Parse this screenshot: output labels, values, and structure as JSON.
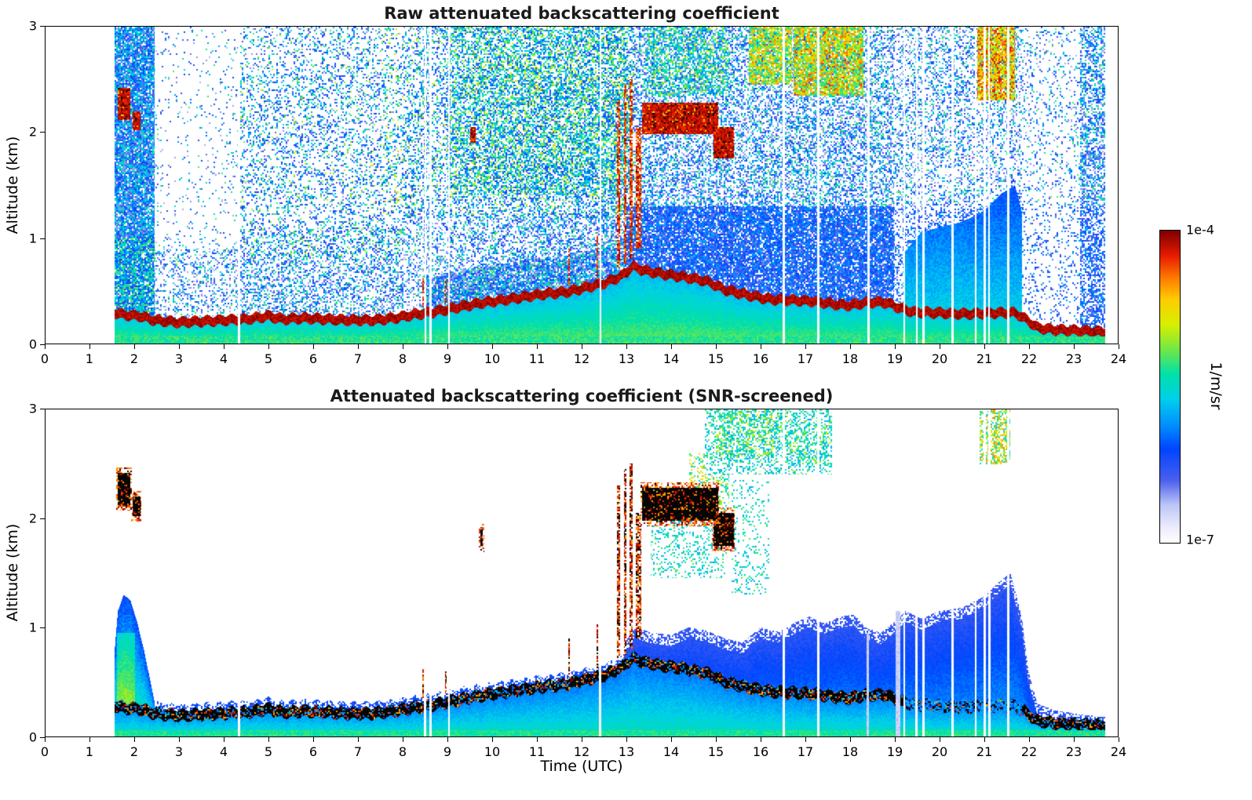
{
  "figure": {
    "xlabel": "Time (UTC)",
    "colorbar": {
      "max_label": "1e-4",
      "min_label": "1e-7",
      "unit_label": "1/m/sr",
      "scale": "log",
      "colormap": "white-blue-cyan-green-yellow-red-darkred"
    }
  },
  "chart_data": [
    {
      "type": "heatmap",
      "title": "Raw attenuated backscattering coefficient",
      "ylabel": "Altitude (km)",
      "xlim": [
        0,
        24
      ],
      "ylim": [
        0,
        3
      ],
      "xticks": [
        0,
        1,
        2,
        3,
        4,
        5,
        6,
        7,
        8,
        9,
        10,
        11,
        12,
        13,
        14,
        15,
        16,
        17,
        18,
        19,
        20,
        21,
        22,
        23,
        24
      ],
      "yticks": [
        0,
        1,
        2,
        3
      ],
      "value_range_1_per_m_sr": [
        1e-07,
        0.0001
      ],
      "data_start_utc": 1.55,
      "data_end_utc": 23.72,
      "aerosol_layer_top_km": [
        [
          1.55,
          0.33
        ],
        [
          1.8,
          0.31
        ],
        [
          2.1,
          0.3
        ],
        [
          2.45,
          0.26
        ],
        [
          3.0,
          0.24
        ],
        [
          3.5,
          0.25
        ],
        [
          4.0,
          0.26
        ],
        [
          4.5,
          0.27
        ],
        [
          5.0,
          0.3
        ],
        [
          5.3,
          0.27
        ],
        [
          5.8,
          0.28
        ],
        [
          6.3,
          0.27
        ],
        [
          6.8,
          0.26
        ],
        [
          7.3,
          0.26
        ],
        [
          7.8,
          0.28
        ],
        [
          8.2,
          0.31
        ],
        [
          8.7,
          0.34
        ],
        [
          9.2,
          0.38
        ],
        [
          9.7,
          0.42
        ],
        [
          10.2,
          0.45
        ],
        [
          10.7,
          0.48
        ],
        [
          11.2,
          0.51
        ],
        [
          11.7,
          0.53
        ],
        [
          12.1,
          0.57
        ],
        [
          12.5,
          0.61
        ],
        [
          12.9,
          0.68
        ],
        [
          13.15,
          0.77
        ],
        [
          13.4,
          0.73
        ],
        [
          13.8,
          0.7
        ],
        [
          14.3,
          0.67
        ],
        [
          14.8,
          0.63
        ],
        [
          15.2,
          0.55
        ],
        [
          15.7,
          0.5
        ],
        [
          16.2,
          0.46
        ],
        [
          16.7,
          0.45
        ],
        [
          17.2,
          0.44
        ],
        [
          17.7,
          0.41
        ],
        [
          18.0,
          0.4
        ],
        [
          18.4,
          0.43
        ],
        [
          18.8,
          0.43
        ],
        [
          19.1,
          0.38
        ],
        [
          19.4,
          0.34
        ],
        [
          20.0,
          0.33
        ],
        [
          20.6,
          0.32
        ],
        [
          21.2,
          0.33
        ],
        [
          21.7,
          0.33
        ],
        [
          21.95,
          0.27
        ],
        [
          22.2,
          0.19
        ],
        [
          22.6,
          0.17
        ],
        [
          23.2,
          0.16
        ],
        [
          23.7,
          0.15
        ]
      ],
      "cloud_layers": [
        {
          "t0": 1.62,
          "t1": 1.9,
          "z0": 2.12,
          "z1": 2.42
        },
        {
          "t0": 1.95,
          "t1": 2.12,
          "z0": 2.02,
          "z1": 2.2
        },
        {
          "t0": 13.35,
          "t1": 15.05,
          "z0": 1.98,
          "z1": 2.28
        },
        {
          "t0": 14.95,
          "t1": 15.4,
          "z0": 1.75,
          "z1": 2.05
        },
        {
          "t0": 9.5,
          "t1": 9.62,
          "z0": 1.9,
          "z1": 2.05
        }
      ],
      "plumes": [
        {
          "t": 12.82,
          "w": 0.07,
          "z0": 0.72,
          "z1": 2.3
        },
        {
          "t": 12.97,
          "w": 0.06,
          "z0": 0.75,
          "z1": 2.45
        },
        {
          "t": 13.1,
          "w": 0.07,
          "z0": 0.8,
          "z1": 2.5
        },
        {
          "t": 13.28,
          "w": 0.12,
          "z0": 0.9,
          "z1": 2.05
        },
        {
          "t": 11.72,
          "w": 0.05,
          "z0": 0.55,
          "z1": 0.9
        },
        {
          "t": 12.35,
          "w": 0.04,
          "z0": 0.6,
          "z1": 1.05
        },
        {
          "t": 8.45,
          "w": 0.04,
          "z0": 0.35,
          "z1": 0.62
        },
        {
          "t": 8.96,
          "w": 0.04,
          "z0": 0.38,
          "z1": 0.6
        }
      ],
      "noise_patches": [
        {
          "t0": 15.75,
          "t1": 16.7,
          "z0": 2.45,
          "z1": 3.0,
          "d": 0.8,
          "v0": 0.5,
          "v1": 0.85
        },
        {
          "t0": 16.75,
          "t1": 18.3,
          "z0": 2.35,
          "z1": 3.0,
          "d": 0.85,
          "v0": 0.5,
          "v1": 0.9
        },
        {
          "t0": 20.85,
          "t1": 21.7,
          "z0": 2.3,
          "z1": 3.0,
          "d": 0.9,
          "v0": 0.6,
          "v1": 0.95
        },
        {
          "t0": 13.45,
          "t1": 15.3,
          "z0": 2.35,
          "z1": 3.0,
          "d": 0.45,
          "v0": 0.35,
          "v1": 0.7
        },
        {
          "t0": 9.0,
          "t1": 13.05,
          "z0": 1.4,
          "z1": 3.0,
          "d": 0.3,
          "v0": 0.3,
          "v1": 0.72
        }
      ],
      "wedge_top_km": [
        [
          19.2,
          0.85
        ],
        [
          19.6,
          1.05
        ],
        [
          20.0,
          1.1
        ],
        [
          20.5,
          1.15
        ],
        [
          21.0,
          1.25
        ],
        [
          21.4,
          1.42
        ],
        [
          21.7,
          1.5
        ],
        [
          21.85,
          1.25
        ]
      ],
      "gaps_utc": [
        4.33,
        8.5,
        8.62,
        9.03,
        12.42,
        16.52,
        17.3,
        18.42,
        19.22,
        19.5,
        19.65,
        20.3,
        20.82,
        21.02,
        21.12,
        21.55
      ]
    },
    {
      "type": "heatmap",
      "title": "Attenuated backscattering coefficient (SNR-screened)",
      "ylabel": "Altitude (km)",
      "xlabel": "Time (UTC)",
      "xlim": [
        0,
        24
      ],
      "ylim": [
        0,
        3
      ],
      "xticks": [
        0,
        1,
        2,
        3,
        4,
        5,
        6,
        7,
        8,
        9,
        10,
        11,
        12,
        13,
        14,
        15,
        16,
        17,
        18,
        19,
        20,
        21,
        22,
        23,
        24
      ],
      "yticks": [
        0,
        1,
        2,
        3
      ],
      "value_range_1_per_m_sr": [
        1e-07,
        0.0001
      ],
      "data_start_utc": 1.55,
      "data_end_utc": 23.72,
      "aerosol_layer_top_km": [
        [
          1.55,
          0.33
        ],
        [
          1.8,
          0.31
        ],
        [
          2.1,
          0.3
        ],
        [
          2.45,
          0.26
        ],
        [
          3.0,
          0.24
        ],
        [
          3.5,
          0.25
        ],
        [
          4.0,
          0.26
        ],
        [
          4.5,
          0.27
        ],
        [
          5.0,
          0.3
        ],
        [
          5.3,
          0.27
        ],
        [
          5.8,
          0.28
        ],
        [
          6.3,
          0.27
        ],
        [
          6.8,
          0.26
        ],
        [
          7.3,
          0.26
        ],
        [
          7.8,
          0.28
        ],
        [
          8.2,
          0.31
        ],
        [
          8.7,
          0.34
        ],
        [
          9.2,
          0.38
        ],
        [
          9.7,
          0.42
        ],
        [
          10.2,
          0.45
        ],
        [
          10.7,
          0.48
        ],
        [
          11.2,
          0.51
        ],
        [
          11.7,
          0.53
        ],
        [
          12.1,
          0.57
        ],
        [
          12.5,
          0.61
        ],
        [
          12.9,
          0.68
        ],
        [
          13.15,
          0.77
        ],
        [
          13.4,
          0.73
        ],
        [
          13.8,
          0.7
        ],
        [
          14.3,
          0.67
        ],
        [
          14.8,
          0.63
        ],
        [
          15.2,
          0.55
        ],
        [
          15.7,
          0.5
        ],
        [
          16.2,
          0.46
        ],
        [
          16.7,
          0.45
        ],
        [
          17.2,
          0.44
        ],
        [
          17.7,
          0.41
        ],
        [
          18.0,
          0.4
        ],
        [
          18.4,
          0.43
        ],
        [
          18.8,
          0.43
        ],
        [
          19.1,
          0.38
        ],
        [
          19.4,
          0.34
        ],
        [
          20.0,
          0.33
        ],
        [
          20.6,
          0.32
        ],
        [
          21.2,
          0.33
        ],
        [
          21.7,
          0.33
        ],
        [
          21.95,
          0.27
        ],
        [
          22.2,
          0.19
        ],
        [
          22.6,
          0.17
        ],
        [
          23.2,
          0.16
        ],
        [
          23.7,
          0.15
        ]
      ],
      "cloud_layers": [
        {
          "t0": 1.62,
          "t1": 1.9,
          "z0": 2.12,
          "z1": 2.42
        },
        {
          "t0": 1.95,
          "t1": 2.12,
          "z0": 2.02,
          "z1": 2.2
        },
        {
          "t0": 13.35,
          "t1": 15.05,
          "z0": 1.98,
          "z1": 2.28
        },
        {
          "t0": 14.95,
          "t1": 15.4,
          "z0": 1.75,
          "z1": 2.05
        },
        {
          "t0": 9.73,
          "t1": 9.79,
          "z0": 1.74,
          "z1": 1.9
        }
      ],
      "plumes": [
        {
          "t": 12.82,
          "w": 0.07,
          "z0": 0.72,
          "z1": 2.3
        },
        {
          "t": 12.97,
          "w": 0.06,
          "z0": 0.75,
          "z1": 2.45
        },
        {
          "t": 13.1,
          "w": 0.07,
          "z0": 0.8,
          "z1": 2.5
        },
        {
          "t": 13.28,
          "w": 0.12,
          "z0": 0.9,
          "z1": 2.05
        },
        {
          "t": 11.72,
          "w": 0.05,
          "z0": 0.55,
          "z1": 0.9
        },
        {
          "t": 12.35,
          "w": 0.04,
          "z0": 0.6,
          "z1": 1.05
        },
        {
          "t": 8.45,
          "w": 0.04,
          "z0": 0.35,
          "z1": 0.62
        },
        {
          "t": 8.96,
          "w": 0.04,
          "z0": 0.38,
          "z1": 0.6
        }
      ],
      "green_patches": [
        {
          "t0": 14.75,
          "t1": 17.6,
          "z0": 2.4,
          "z1": 3.0,
          "d": 0.3,
          "v0": 0.38,
          "v1": 0.62
        },
        {
          "t0": 15.0,
          "t1": 16.3,
          "z0": 2.55,
          "z1": 3.0,
          "d": 0.55,
          "v0": 0.45,
          "v1": 0.75
        },
        {
          "t0": 16.3,
          "t1": 17.6,
          "z0": 2.5,
          "z1": 3.0,
          "d": 0.45,
          "v0": 0.42,
          "v1": 0.7
        },
        {
          "t0": 13.55,
          "t1": 15.25,
          "z0": 1.45,
          "z1": 2.0,
          "d": 0.2,
          "v0": 0.4,
          "v1": 0.6
        },
        {
          "t0": 14.4,
          "t1": 15.3,
          "z0": 2.0,
          "z1": 2.6,
          "d": 0.28,
          "v0": 0.45,
          "v1": 0.8
        },
        {
          "t0": 15.35,
          "t1": 16.2,
          "z0": 1.3,
          "z1": 2.35,
          "d": 0.15,
          "v0": 0.4,
          "v1": 0.6
        },
        {
          "t0": 20.9,
          "t1": 21.6,
          "z0": 2.5,
          "z1": 3.0,
          "d": 0.55,
          "v0": 0.45,
          "v1": 0.85
        }
      ],
      "fill_top_km": [
        [
          12.95,
          0.85
        ],
        [
          13.2,
          1.0
        ],
        [
          13.6,
          0.95
        ],
        [
          14.0,
          0.93
        ],
        [
          14.4,
          1.0
        ],
        [
          14.8,
          0.97
        ],
        [
          15.2,
          0.9
        ],
        [
          15.6,
          0.86
        ],
        [
          16.0,
          1.0
        ],
        [
          16.4,
          0.96
        ],
        [
          16.8,
          1.05
        ],
        [
          17.1,
          1.1
        ],
        [
          17.4,
          1.04
        ],
        [
          17.8,
          1.1
        ],
        [
          18.1,
          1.12
        ],
        [
          18.35,
          1.0
        ],
        [
          18.7,
          0.95
        ],
        [
          19.0,
          1.05
        ],
        [
          19.25,
          1.15
        ],
        [
          19.6,
          1.08
        ],
        [
          20.0,
          1.15
        ],
        [
          20.5,
          1.18
        ],
        [
          21.0,
          1.28
        ],
        [
          21.35,
          1.42
        ],
        [
          21.6,
          1.5
        ],
        [
          21.85,
          1.1
        ],
        [
          22.0,
          0.6
        ],
        [
          22.2,
          0.3
        ],
        [
          22.6,
          0.24
        ],
        [
          23.2,
          0.2
        ],
        [
          23.7,
          0.18
        ]
      ],
      "early_column_top_km": [
        [
          1.55,
          0.8
        ],
        [
          1.62,
          1.15
        ],
        [
          1.75,
          1.3
        ],
        [
          1.9,
          1.25
        ],
        [
          2.05,
          1.05
        ],
        [
          2.2,
          0.8
        ],
        [
          2.35,
          0.5
        ],
        [
          2.45,
          0.3
        ]
      ],
      "purple_columns": [
        {
          "t": 19.08,
          "w": 0.1,
          "z1": 1.15
        },
        {
          "t": 18.4,
          "w": 0.05,
          "z1": 0.95
        }
      ],
      "gaps_utc": [
        4.33,
        8.5,
        8.62,
        9.03,
        12.42,
        16.52,
        17.3,
        19.22,
        19.5,
        19.65,
        20.3,
        20.82,
        21.02,
        21.12,
        21.55
      ]
    }
  ]
}
